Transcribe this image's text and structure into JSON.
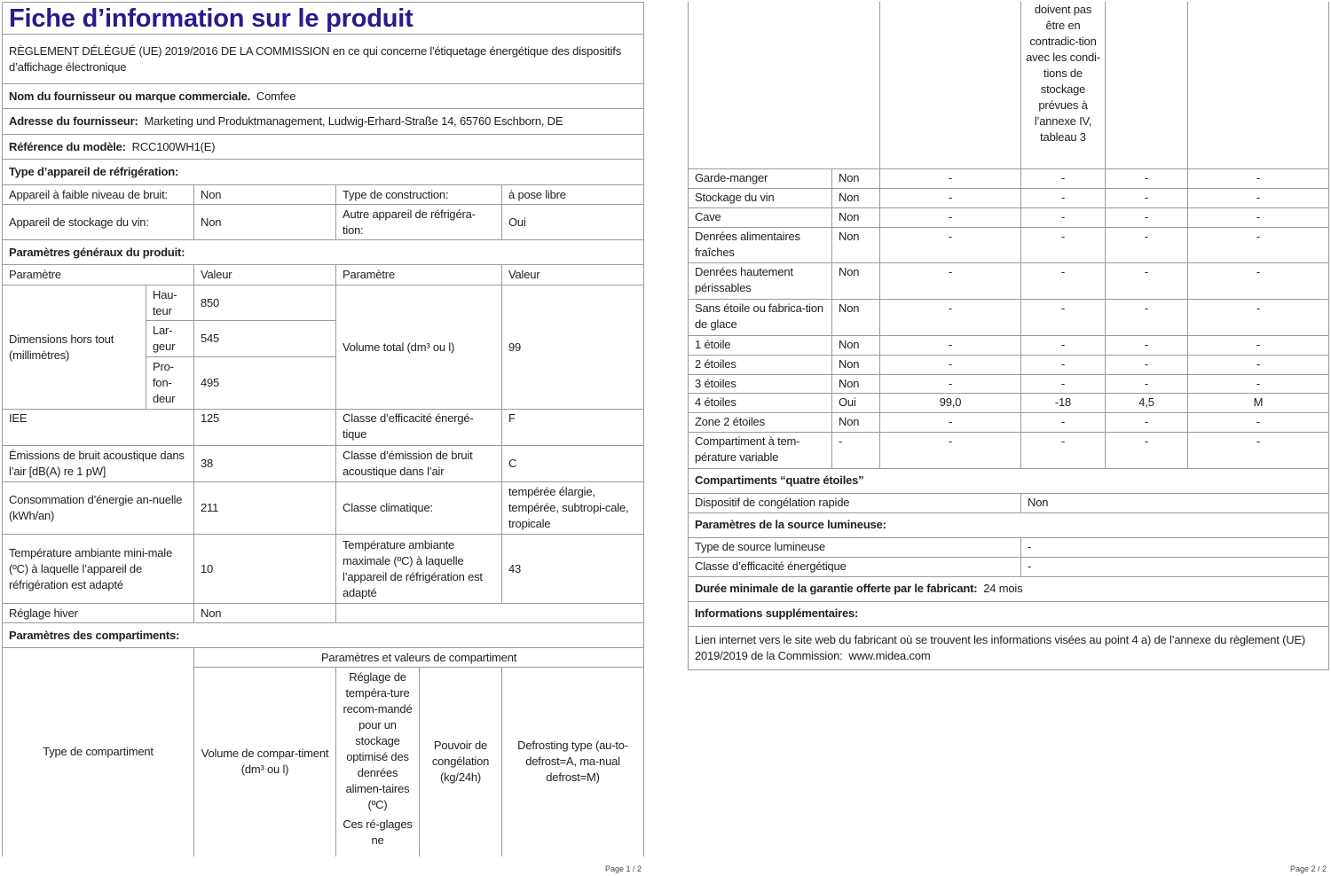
{
  "page1": {
    "title": "Fiche d’information sur le produit",
    "regulation": "RÈGLEMENT DÉLÉGUÉ (UE) 2019/2016 DE LA COMMISSION en ce qui concerne l'étiquetage énergétique des dispositifs d’affichage électronique",
    "supplier_label": "Nom du fournisseur ou marque commerciale.",
    "supplier": "Comfee",
    "address_label": "Adresse du fournisseur:",
    "address": "Marketing und Produktmanagement, Ludwig-Erhard-Straße 14, 65760 Eschborn, DE",
    "model_label": "Référence du modèle:",
    "model": "RCC100WH1(E)",
    "type_heading": "Type d’appareil de réfrigération:",
    "low_noise_label": "Appareil à faible niveau de bruit:",
    "low_noise": "Non",
    "construction_label": "Type de construction:",
    "construction": "à pose libre",
    "wine_label": "Appareil de stockage du vin:",
    "wine": "Non",
    "other_label": "Autre appareil de réfrigéra-tion:",
    "other": "Oui",
    "general_heading": "Paramètres généraux du produit:",
    "col_param": "Paramètre",
    "col_value": "Valeur",
    "dims_label": "Dimensions hors tout (millimètres)",
    "height_label": "Hau-teur",
    "height": "850",
    "width_label": "Lar-geur",
    "width": "545",
    "depth_label": "Pro-fon-deur",
    "depth": "495",
    "volume_label": "Volume total (dm³ ou l)",
    "volume": "99",
    "iee_label": "IEE",
    "iee": "125",
    "eff_class_label": "Classe d’efficacité énergé-tique",
    "eff_class": "F",
    "noise_label": "Émissions de bruit acoustique dans l’air [dB(A) re 1 pW]",
    "noise": "38",
    "noise_class_label": "Classe d’émission de bruit acoustique dans l’air",
    "noise_class": "C",
    "energy_label": "Consommation d’énergie an-nuelle (kWh/an)",
    "energy": "211",
    "climate_label": "Classe climatique:",
    "climate": "tempérée élargie, tempérée, subtropi-cale, tropicale",
    "tmin_label": "Température ambiante mini-male (ºC) à laquelle l’appareil de réfrigération est adapté",
    "tmin": "10",
    "tmax_label": "Température ambiante maximale (ºC) à laquelle l’appareil de réfrigération est adapté",
    "tmax": "43",
    "winter_label": "Réglage hiver",
    "winter": "Non",
    "compartments_heading": "Paramètres des compartiments:",
    "comp_type": "Type de compartiment",
    "comp_params": "Paramètres et valeurs de compartiment",
    "comp_volume": "Volume de compar-timent (dm³ ou l)",
    "comp_temp": "Réglage de tempéra-ture recom-mandé pour un stockage optimisé des denrées alimen-taires (ºC)",
    "comp_temp_note": "Ces ré-glages ne",
    "comp_freeze": "Pouvoir de congélation (kg/24h)",
    "comp_defrost": "Defrosting type (au-to-defrost=A, ma-nual defrost=M)",
    "footer": "Page 1 / 2"
  },
  "page2": {
    "temp_note_cont": "doivent pas être en contradic-tion avec les condi-tions de stockage prévues à l’annexe IV, tableau 3",
    "rows": [
      [
        "Garde-manger",
        "Non",
        "-",
        "-",
        "-",
        "-"
      ],
      [
        "Stockage du vin",
        "Non",
        "-",
        "-",
        "-",
        "-"
      ],
      [
        "Cave",
        "Non",
        "-",
        "-",
        "-",
        "-"
      ],
      [
        "Denrées alimentaires fraîches",
        "Non",
        "-",
        "-",
        "-",
        "-"
      ],
      [
        "Denrées hautement périssables",
        "Non",
        "-",
        "-",
        "-",
        "-"
      ],
      [
        "Sans étoile ou fabrica-tion de glace",
        "Non",
        "-",
        "-",
        "-",
        "-"
      ],
      [
        "1 étoile",
        "Non",
        "-",
        "-",
        "-",
        "-"
      ],
      [
        "2 étoiles",
        "Non",
        "-",
        "-",
        "-",
        "-"
      ],
      [
        "3 étoiles",
        "Non",
        "-",
        "-",
        "-",
        "-"
      ],
      [
        "4 étoiles",
        "Oui",
        "99,0",
        "-18",
        "4,5",
        "M"
      ],
      [
        "Zone 2 étoiles",
        "Non",
        "-",
        "-",
        "-",
        "-"
      ],
      [
        "Compartiment à tem-pérature variable",
        "-",
        "-",
        "-",
        "-",
        "-"
      ]
    ],
    "four_star_heading": "Compartiments “quatre étoiles”",
    "fast_freeze_label": "Dispositif de congélation rapide",
    "fast_freeze": "Non",
    "light_heading": "Paramètres de la source lumineuse:",
    "light_type_label": "Type de source lumineuse",
    "light_type": "-",
    "light_class_label": "Classe d’efficacité énergétique",
    "light_class": "-",
    "warranty_label": "Durée minimale de la garantie offerte par le fabricant:",
    "warranty": "24 mois",
    "info_heading": "Informations supplémentaires:",
    "link_text": "Lien internet vers le site web du fabricant où se trouvent les informations visées au point 4 a) de l’annexe du règlement (UE) 2019/2019 de la Commission:",
    "link_url": "www.midea.com",
    "footer": "Page 2 / 2"
  }
}
